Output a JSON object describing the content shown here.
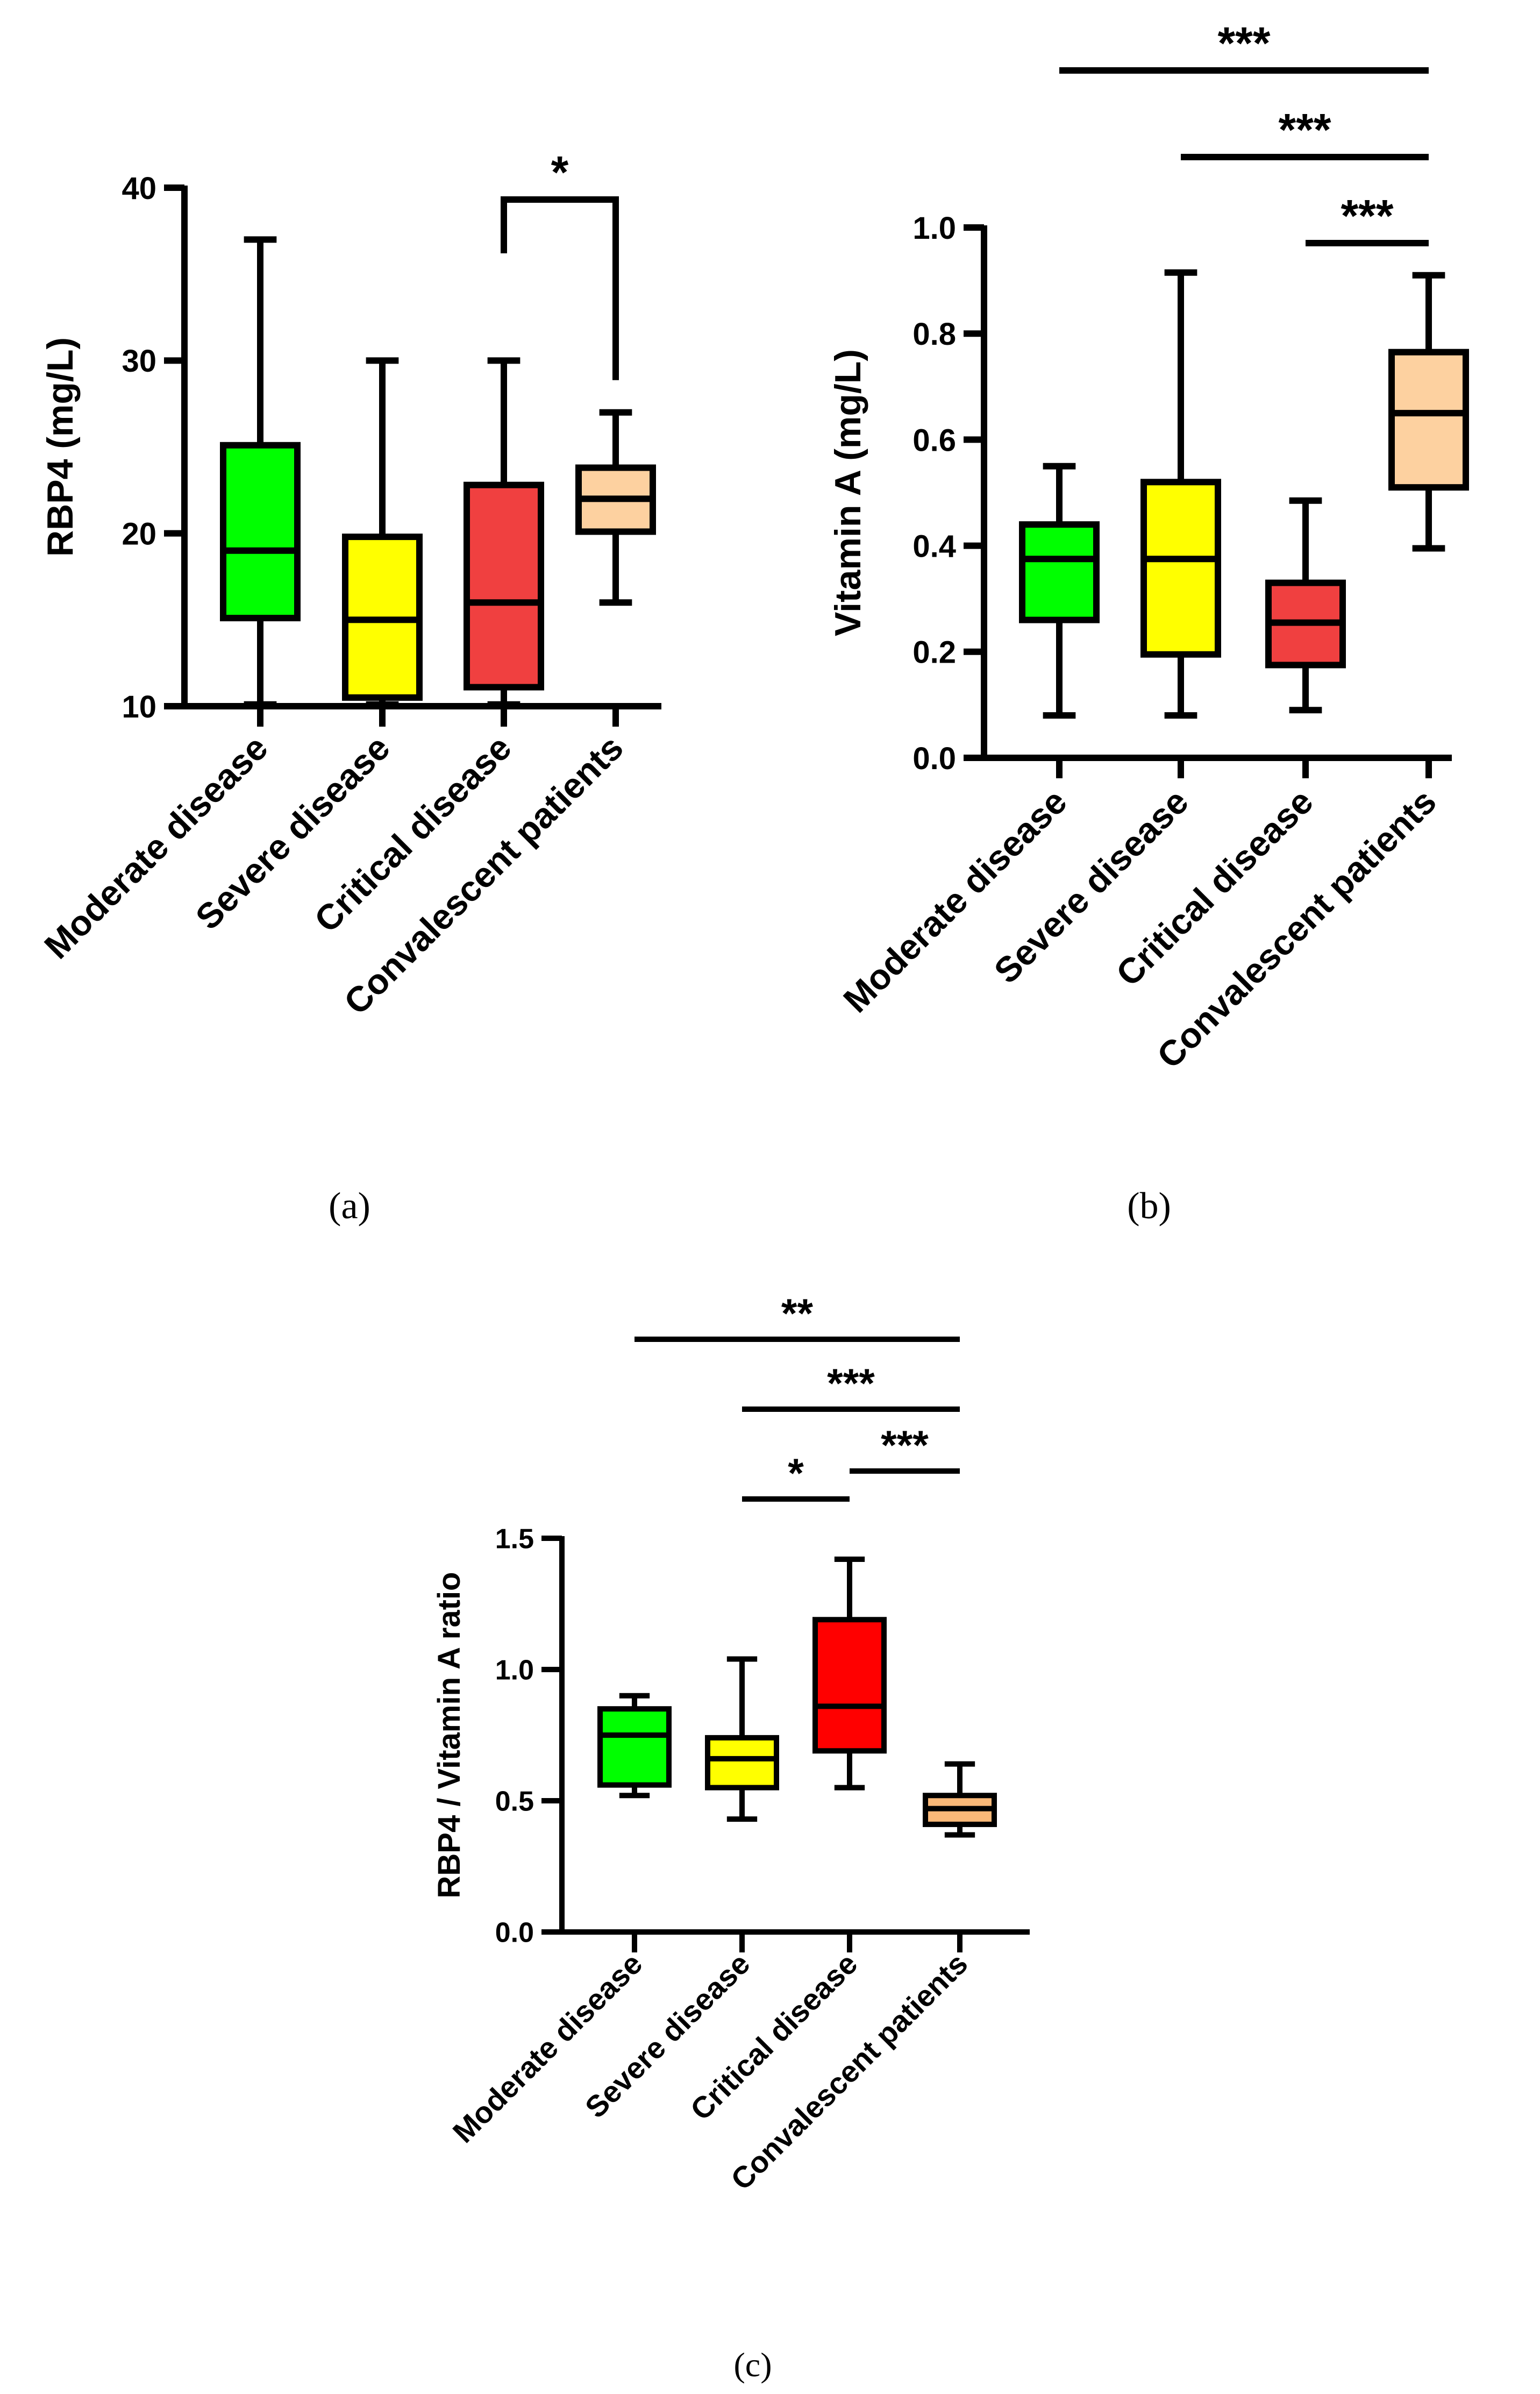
{
  "chart_data": [
    {
      "type": "boxplot",
      "panel_label": "(a)",
      "ylabel": "RBP4 (mg/L)",
      "ylim": [
        10,
        40
      ],
      "yticks": [
        10,
        20,
        30,
        40
      ],
      "categories": [
        "Moderate disease",
        "Severe disease",
        "Critical disease",
        "Convalescent patients"
      ],
      "colors": [
        "#00ff00",
        "#ffff00",
        "#f04040",
        "#fdd1a0"
      ],
      "boxes": [
        {
          "min": 10.1,
          "q1": 15.1,
          "median": 19.0,
          "q3": 25.1,
          "max": 37.0
        },
        {
          "min": 10.1,
          "q1": 10.5,
          "median": 15.0,
          "q3": 19.8,
          "max": 30.0
        },
        {
          "min": 10.1,
          "q1": 11.1,
          "median": 16.0,
          "q3": 22.8,
          "max": 30.0
        },
        {
          "min": 16.0,
          "q1": 20.1,
          "median": 22.0,
          "q3": 23.8,
          "max": 27.0
        }
      ],
      "significance": [
        {
          "from": 2,
          "to": 3,
          "label": "*",
          "style": "bracket"
        }
      ]
    },
    {
      "type": "boxplot",
      "panel_label": "(b)",
      "ylabel": "Vitamin A (mg/L)",
      "ylim": [
        0.0,
        1.0
      ],
      "yticks": [
        "0.0",
        "0.2",
        "0.4",
        "0.6",
        "0.8",
        "1.0"
      ],
      "categories": [
        "Moderate disease",
        "Severe disease",
        "Critical disease",
        "Convalescent patients"
      ],
      "colors": [
        "#00ff00",
        "#ffff00",
        "#f04040",
        "#fdd1a0"
      ],
      "boxes": [
        {
          "min": 0.08,
          "q1": 0.26,
          "median": 0.375,
          "q3": 0.44,
          "max": 0.55
        },
        {
          "min": 0.08,
          "q1": 0.195,
          "median": 0.375,
          "q3": 0.52,
          "max": 0.915
        },
        {
          "min": 0.09,
          "q1": 0.175,
          "median": 0.255,
          "q3": 0.33,
          "max": 0.485
        },
        {
          "min": 0.395,
          "q1": 0.51,
          "median": 0.65,
          "q3": 0.765,
          "max": 0.91
        }
      ],
      "significance": [
        {
          "from": 0,
          "to": 3,
          "label": "***",
          "style": "line"
        },
        {
          "from": 1,
          "to": 3,
          "label": "***",
          "style": "line"
        },
        {
          "from": 2,
          "to": 3,
          "label": "***",
          "style": "line"
        }
      ]
    },
    {
      "type": "boxplot",
      "panel_label": "(c)",
      "ylabel": "RBP4 / Vitamin A ratio",
      "ylim": [
        0.0,
        1.5
      ],
      "yticks": [
        "0.0",
        "0.5",
        "1.0",
        "1.5"
      ],
      "categories": [
        "Moderate disease",
        "Severe disease",
        "Critical disease",
        "Convalescent patients"
      ],
      "colors": [
        "#00ff00",
        "#ffff00",
        "#ff0000",
        "#f9b878"
      ],
      "boxes": [
        {
          "min": 0.52,
          "q1": 0.56,
          "median": 0.75,
          "q3": 0.85,
          "max": 0.9
        },
        {
          "min": 0.43,
          "q1": 0.55,
          "median": 0.66,
          "q3": 0.74,
          "max": 1.04
        },
        {
          "min": 0.55,
          "q1": 0.69,
          "median": 0.86,
          "q3": 1.19,
          "max": 1.42
        },
        {
          "min": 0.37,
          "q1": 0.41,
          "median": 0.47,
          "q3": 0.52,
          "max": 0.64
        }
      ],
      "significance": [
        {
          "from": 0,
          "to": 3,
          "label": "**",
          "style": "line"
        },
        {
          "from": 1,
          "to": 3,
          "label": "***",
          "style": "line"
        },
        {
          "from": 1,
          "to": 2,
          "label": "*",
          "style": "line"
        },
        {
          "from": 2,
          "to": 3,
          "label": "***",
          "style": "line"
        }
      ]
    }
  ]
}
